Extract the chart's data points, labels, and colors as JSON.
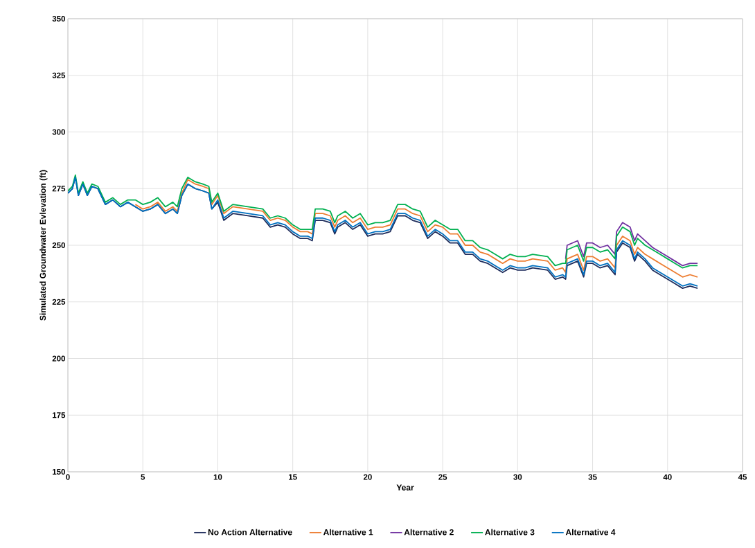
{
  "chart_data": {
    "type": "line",
    "xlabel": "Year",
    "ylabel": "Simulated Groundwater Evlevation (ft)",
    "xlim": [
      0,
      45
    ],
    "ylim": [
      150,
      350
    ],
    "xticks": [
      0,
      5,
      10,
      15,
      20,
      25,
      30,
      35,
      40,
      45
    ],
    "yticks": [
      150,
      175,
      200,
      225,
      250,
      275,
      300,
      325,
      350
    ],
    "grid": true,
    "legend": "bottom",
    "x": [
      0,
      0.3,
      0.5,
      0.7,
      1,
      1.3,
      1.6,
      2,
      2.5,
      3,
      3.5,
      4,
      4.5,
      5,
      5.5,
      6,
      6.5,
      7,
      7.3,
      7.6,
      8,
      8.5,
      9,
      9.4,
      9.6,
      10,
      10.4,
      11,
      12,
      13,
      13.5,
      14,
      14.5,
      15,
      15.5,
      16,
      16.3,
      16.5,
      17,
      17.5,
      17.8,
      18,
      18.5,
      19,
      19.5,
      20,
      20.5,
      21,
      21.5,
      22,
      22.5,
      23,
      23.5,
      24,
      24.5,
      25,
      25.5,
      26,
      26.5,
      27,
      27.5,
      28,
      28.5,
      29,
      29.5,
      30,
      30.5,
      31,
      32,
      32.5,
      33,
      33.2,
      33.3,
      34,
      34.4,
      34.6,
      35,
      35.5,
      36,
      36.5,
      36.6,
      37,
      37.5,
      37.8,
      38,
      38.5,
      39,
      39.5,
      40,
      40.5,
      41,
      41.5,
      42
    ],
    "series": [
      {
        "name": "No Action Alternative",
        "color": "#1f2d5c",
        "values": [
          273,
          275,
          280,
          272,
          277,
          272,
          276,
          275,
          268,
          270,
          267,
          269,
          267,
          265,
          266,
          268,
          264,
          266,
          264,
          272,
          277,
          275,
          274,
          273,
          266,
          269,
          261,
          264,
          263,
          262,
          258,
          259,
          258,
          255,
          253,
          253,
          252,
          261,
          261,
          260,
          255,
          258,
          260,
          257,
          259,
          254,
          255,
          255,
          256,
          263,
          263,
          261,
          260,
          253,
          256,
          254,
          251,
          251,
          246,
          246,
          243,
          242,
          240,
          238,
          240,
          239,
          239,
          240,
          239,
          235,
          236,
          235,
          241,
          243,
          236,
          242,
          242,
          240,
          241,
          237,
          247,
          251,
          249,
          243,
          246,
          243,
          239,
          237,
          235,
          233,
          231,
          232,
          231
        ]
      },
      {
        "name": "Alternative 1",
        "color": "#ed7d31",
        "values": [
          null,
          null,
          null,
          null,
          null,
          null,
          null,
          null,
          null,
          null,
          null,
          null,
          268,
          266,
          267,
          269,
          265,
          267,
          265,
          273,
          279,
          277,
          276,
          275,
          268,
          272,
          264,
          267,
          266,
          265,
          261,
          262,
          261,
          258,
          256,
          256,
          255,
          264,
          264,
          263,
          258,
          261,
          263,
          260,
          262,
          257,
          258,
          258,
          259,
          266,
          266,
          264,
          263,
          256,
          259,
          258,
          255,
          255,
          250,
          250,
          247,
          246,
          244,
          242,
          244,
          243,
          243,
          244,
          243,
          239,
          240,
          238,
          244,
          246,
          239,
          245,
          245,
          243,
          244,
          240,
          250,
          254,
          252,
          246,
          249,
          246,
          244,
          242,
          240,
          238,
          236,
          237,
          236
        ]
      },
      {
        "name": "Alternative 2",
        "color": "#7030a0",
        "values": [
          null,
          null,
          null,
          null,
          null,
          null,
          null,
          null,
          null,
          null,
          null,
          null,
          null,
          null,
          null,
          null,
          null,
          null,
          null,
          null,
          null,
          null,
          null,
          null,
          null,
          null,
          null,
          null,
          null,
          null,
          null,
          null,
          null,
          null,
          null,
          null,
          null,
          null,
          null,
          null,
          null,
          null,
          null,
          null,
          null,
          null,
          null,
          null,
          null,
          null,
          null,
          null,
          null,
          null,
          null,
          null,
          null,
          null,
          null,
          null,
          null,
          null,
          null,
          null,
          null,
          null,
          null,
          null,
          null,
          null,
          null,
          244,
          250,
          252,
          245,
          251,
          251,
          249,
          250,
          246,
          256,
          260,
          258,
          252,
          255,
          252,
          249,
          247,
          245,
          243,
          241,
          242,
          242
        ]
      },
      {
        "name": "Alternative 3",
        "color": "#00b050",
        "values": [
          274,
          276,
          281,
          273,
          278,
          273,
          277,
          276,
          269,
          271,
          268,
          270,
          270,
          268,
          269,
          271,
          267,
          269,
          267,
          275,
          280,
          278,
          277,
          276,
          269,
          273,
          265,
          268,
          267,
          266,
          262,
          263,
          262,
          259,
          257,
          257,
          257,
          266,
          266,
          265,
          260,
          263,
          265,
          262,
          264,
          259,
          260,
          260,
          261,
          268,
          268,
          266,
          265,
          258,
          261,
          259,
          257,
          257,
          252,
          252,
          249,
          248,
          246,
          244,
          246,
          245,
          245,
          246,
          245,
          241,
          242,
          242,
          248,
          250,
          243,
          249,
          249,
          247,
          248,
          244,
          254,
          258,
          256,
          250,
          253,
          250,
          248,
          246,
          244,
          242,
          240,
          241,
          241
        ]
      },
      {
        "name": "Alternative 4",
        "color": "#0070c0",
        "values": [
          273,
          275,
          280,
          272,
          277,
          272,
          276,
          275,
          268,
          270,
          267,
          269,
          267,
          265,
          266,
          268,
          264,
          266,
          264,
          272,
          277,
          275,
          274,
          273,
          266,
          270,
          262,
          265,
          264,
          263,
          259,
          260,
          259,
          256,
          254,
          254,
          253,
          262,
          262,
          261,
          256,
          259,
          261,
          258,
          260,
          255,
          256,
          256,
          257,
          264,
          264,
          262,
          261,
          254,
          257,
          255,
          252,
          252,
          247,
          247,
          244,
          243,
          241,
          239,
          241,
          240,
          240,
          241,
          240,
          236,
          237,
          236,
          242,
          244,
          237,
          243,
          243,
          241,
          242,
          238,
          248,
          252,
          250,
          244,
          247,
          244,
          240,
          238,
          236,
          234,
          232,
          233,
          232
        ]
      }
    ]
  }
}
